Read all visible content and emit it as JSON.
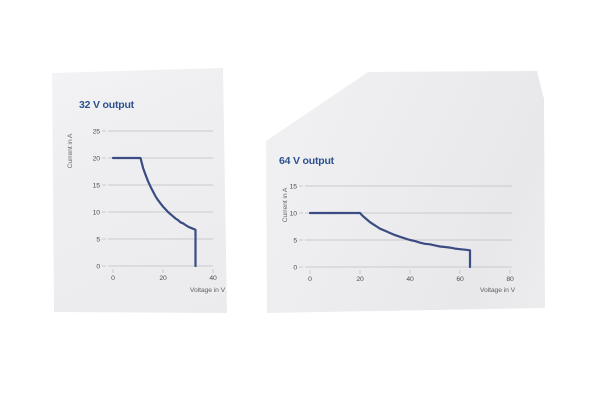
{
  "colors": {
    "title_blue": "#2d5190",
    "curve_blue": "#3a4c82",
    "grid_gray": "#c9cacd",
    "tick_text": "#4b4e56",
    "axis_label_text": "#5f6268",
    "panel_gray": "#ededef",
    "page_background": "#ffffff"
  },
  "chart_data": [
    {
      "type": "line",
      "title": "32 V output",
      "xlabel": "Voltage in V",
      "ylabel": "Current in A",
      "xlim": [
        0,
        40
      ],
      "ylim": [
        0,
        25
      ],
      "xticks": [
        0,
        20,
        40
      ],
      "yticks": [
        0,
        5,
        10,
        15,
        20,
        25
      ],
      "grid": "horizontal-only",
      "legend": "none",
      "series": [
        {
          "points": [
            [
              0,
              20
            ],
            [
              11,
              20
            ],
            [
              12,
              18.2
            ],
            [
              13,
              16.9
            ],
            [
              14,
              15.7
            ],
            [
              15,
              14.7
            ],
            [
              16,
              13.8
            ],
            [
              17,
              12.9
            ],
            [
              18,
              12.2
            ],
            [
              19,
              11.6
            ],
            [
              20,
              11.0
            ],
            [
              21,
              10.5
            ],
            [
              22,
              10.0
            ],
            [
              23,
              9.6
            ],
            [
              24,
              9.2
            ],
            [
              25,
              8.8
            ],
            [
              26,
              8.5
            ],
            [
              27,
              8.1
            ],
            [
              28,
              7.9
            ],
            [
              29,
              7.6
            ],
            [
              30,
              7.3
            ],
            [
              31,
              7.1
            ],
            [
              32,
              6.9
            ],
            [
              33,
              6.7
            ],
            [
              33,
              0
            ]
          ]
        }
      ]
    },
    {
      "type": "line",
      "title": "64 V output",
      "xlabel": "Voltage in V",
      "ylabel": "Current in A",
      "xlim": [
        0,
        80
      ],
      "ylim": [
        0,
        15
      ],
      "xticks": [
        0,
        20,
        40,
        60,
        80
      ],
      "yticks": [
        0,
        5,
        10,
        15
      ],
      "grid": "horizontal-only",
      "legend": "none",
      "series": [
        {
          "points": [
            [
              0,
              10
            ],
            [
              20,
              10
            ],
            [
              21,
              9.5
            ],
            [
              22,
              9.1
            ],
            [
              23,
              8.7
            ],
            [
              24,
              8.3
            ],
            [
              25,
              8.0
            ],
            [
              26,
              7.7
            ],
            [
              27,
              7.4
            ],
            [
              28,
              7.1
            ],
            [
              29,
              6.9
            ],
            [
              30,
              6.7
            ],
            [
              32,
              6.3
            ],
            [
              34,
              5.9
            ],
            [
              36,
              5.6
            ],
            [
              38,
              5.3
            ],
            [
              40,
              5.0
            ],
            [
              42,
              4.8
            ],
            [
              44,
              4.5
            ],
            [
              46,
              4.3
            ],
            [
              48,
              4.2
            ],
            [
              50,
              4.0
            ],
            [
              52,
              3.8
            ],
            [
              54,
              3.7
            ],
            [
              56,
              3.6
            ],
            [
              58,
              3.4
            ],
            [
              60,
              3.3
            ],
            [
              62,
              3.2
            ],
            [
              64,
              3.1
            ],
            [
              64,
              0
            ]
          ]
        }
      ]
    }
  ]
}
